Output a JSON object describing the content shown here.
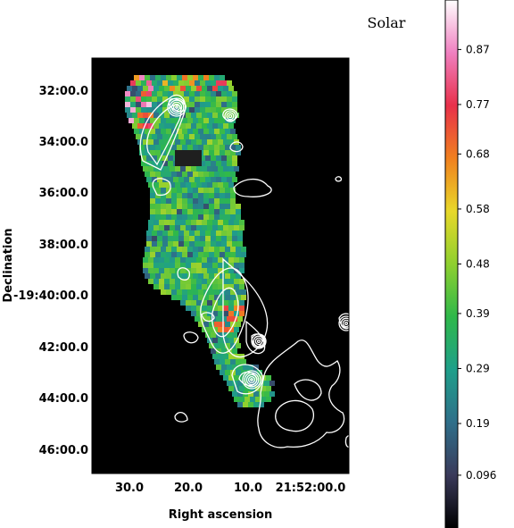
{
  "chart_data": {
    "type": "heatmap",
    "title": "Solar",
    "xlabel": "Right ascension",
    "ylabel": "Declination",
    "x_ticks": [
      "30.0",
      "20.0",
      "10.0",
      "21:52:00.0"
    ],
    "y_ticks": [
      "32:00.0",
      "34:00.0",
      "36:00.0",
      "38:00.0",
      "-19:40:00.0",
      "42:00.0",
      "44:00.0",
      "46:00.0"
    ],
    "colorbar": {
      "ticks": [
        "0.87",
        "0.77",
        "0.68",
        "0.58",
        "0.48",
        "0.39",
        "0.29",
        "0.19",
        "0.096"
      ],
      "range": [
        0,
        0.96
      ],
      "colors": [
        "#000000",
        "#3a3a5a",
        "#2f6f8a",
        "#1f9f8a",
        "#2fb84a",
        "#8fd02f",
        "#e8d82a",
        "#f0801f",
        "#e8304a",
        "#f080c0",
        "#ffffff"
      ]
    },
    "background": "#000000",
    "contour_color": "#ffffff"
  }
}
